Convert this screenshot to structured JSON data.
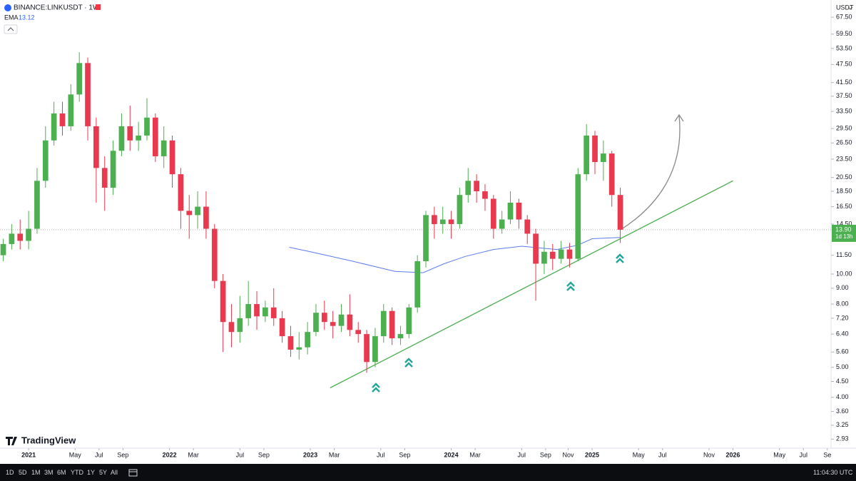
{
  "chart_data": {
    "type": "candlestick",
    "title": "BINANCE:LINKUSDT · 1W",
    "currency": "USDT",
    "log_scale": true,
    "up_color": "#4caf50",
    "down_color": "#e8394f",
    "x": [
      2020.82,
      2020.88,
      2020.94,
      2021.0,
      2021.06,
      2021.12,
      2021.18,
      2021.24,
      2021.3,
      2021.36,
      2021.42,
      2021.48,
      2021.54,
      2021.6,
      2021.66,
      2021.72,
      2021.78,
      2021.84,
      2021.9,
      2021.96,
      2022.02,
      2022.08,
      2022.14,
      2022.2,
      2022.26,
      2022.32,
      2022.38,
      2022.44,
      2022.5,
      2022.56,
      2022.62,
      2022.68,
      2022.74,
      2022.8,
      2022.86,
      2022.92,
      2022.98,
      2023.04,
      2023.1,
      2023.16,
      2023.22,
      2023.28,
      2023.34,
      2023.4,
      2023.46,
      2023.52,
      2023.58,
      2023.64,
      2023.7,
      2023.76,
      2023.82,
      2023.88,
      2023.94,
      2024.0,
      2024.06,
      2024.12,
      2024.18,
      2024.24,
      2024.3,
      2024.36,
      2024.42,
      2024.48,
      2024.54,
      2024.6,
      2024.66,
      2024.72,
      2024.78,
      2024.84,
      2024.9,
      2024.96,
      2025.02,
      2025.08,
      2025.14,
      2025.2
    ],
    "open": [
      11.5,
      12.5,
      13.5,
      12.8,
      14,
      20,
      27,
      33,
      30,
      38,
      48,
      30,
      22,
      19,
      25,
      30,
      27,
      28,
      32,
      24,
      27,
      21,
      16,
      15.5,
      16.5,
      14,
      9.5,
      7,
      6.5,
      7.2,
      8,
      7.3,
      7.8,
      7.2,
      6.3,
      5.7,
      5.8,
      6.5,
      7.5,
      7,
      6.8,
      7.4,
      6.6,
      6.4,
      5.2,
      6.3,
      7.6,
      6.2,
      6.4,
      7.8,
      11,
      15.5,
      14.5,
      15,
      14.5,
      18,
      20,
      18.5,
      17.5,
      14,
      15,
      17,
      15,
      13.5,
      10.8,
      11.8,
      11.2,
      12,
      11.2,
      21,
      28,
      23,
      24.5,
      18
    ],
    "high": [
      13,
      14.5,
      15,
      16,
      22,
      30,
      36,
      36,
      41,
      52,
      50,
      32,
      24,
      27,
      33,
      35,
      31,
      37,
      33,
      30,
      28,
      22,
      18,
      18.5,
      18.5,
      14.5,
      10,
      8,
      8.5,
      9.5,
      8.8,
      8.2,
      9,
      7.6,
      6.8,
      6.5,
      7,
      8,
      8.2,
      7.6,
      8,
      8.6,
      7,
      6.6,
      6.7,
      8,
      7.8,
      6.8,
      8,
      11.5,
      16,
      16.5,
      16.5,
      16,
      19,
      22,
      21,
      19.5,
      18,
      16,
      18.5,
      17.5,
      15.5,
      14,
      12.8,
      12.5,
      12.8,
      12.6,
      22,
      30.5,
      29,
      27,
      25,
      19
    ],
    "low": [
      11,
      12,
      12,
      12,
      13.5,
      19,
      26,
      28,
      29,
      36,
      27,
      17,
      16,
      18,
      24,
      25,
      25,
      27,
      23,
      22,
      19,
      14,
      13,
      14,
      13,
      9,
      5.6,
      5.8,
      6,
      6.8,
      6.6,
      7,
      6.8,
      6,
      5.4,
      5.3,
      5.5,
      6.3,
      6.6,
      6.2,
      6.5,
      6.3,
      6,
      4.8,
      5,
      6,
      5.9,
      5.9,
      6.2,
      7.5,
      10.5,
      13,
      13.5,
      13,
      14,
      17,
      17,
      16,
      13,
      13.5,
      14.5,
      14,
      12.5,
      8.2,
      10,
      10.3,
      10.8,
      10.5,
      11,
      20,
      21,
      20,
      16.5,
      12.6
    ],
    "close": [
      12.5,
      13.5,
      12.8,
      14,
      20,
      27,
      33,
      30,
      38,
      48,
      30,
      22,
      19,
      25,
      30,
      27,
      28,
      32,
      24,
      27,
      21,
      16,
      15.5,
      16.5,
      14,
      9.5,
      7,
      6.5,
      7.2,
      8,
      7.3,
      7.8,
      7.2,
      6.3,
      5.7,
      5.8,
      6.5,
      7.5,
      7,
      6.8,
      7.4,
      6.6,
      6.4,
      5.2,
      6.3,
      7.6,
      6.2,
      6.4,
      7.8,
      11,
      15.5,
      14.5,
      15,
      14.5,
      18,
      20,
      18.5,
      17.5,
      14,
      15,
      17,
      15,
      13.5,
      10.8,
      11.8,
      11.2,
      12,
      11.2,
      21,
      28,
      23,
      24.5,
      18,
      13.9
    ],
    "indicator": {
      "name": "EMA",
      "value": 13.12,
      "color": "#5b7cf0",
      "x": [
        2022.85,
        2023.0,
        2023.3,
        2023.6,
        2023.8,
        2023.95,
        2024.1,
        2024.3,
        2024.5,
        2024.75,
        2024.9,
        2025.0,
        2025.2
      ],
      "values": [
        12.2,
        11.8,
        11.0,
        10.2,
        10.1,
        10.8,
        11.4,
        12.0,
        12.3,
        12.0,
        12.4,
        13.0,
        13.12
      ]
    },
    "trendline": {
      "color": "#4caf50",
      "x": [
        2023.14,
        2026.0
      ],
      "values": [
        4.29,
        20.0
      ]
    },
    "last_price": {
      "value": 13.9,
      "label": "13.90"
    },
    "countdown": "1d 13h",
    "xlim": [
      2020.797,
      2026.696
    ],
    "ylim": [
      2.74,
      76.7
    ],
    "xticks": [
      2021,
      {
        "value": 2021.33,
        "label": "May"
      },
      {
        "value": 2021.5,
        "label": "Jul"
      },
      {
        "value": 2021.67,
        "label": "Sep"
      },
      2022,
      {
        "value": 2022.17,
        "label": "Mar"
      },
      {
        "value": 2022.5,
        "label": "Jul"
      },
      {
        "value": 2022.67,
        "label": "Sep"
      },
      2023,
      {
        "value": 2023.17,
        "label": "Mar"
      },
      {
        "value": 2023.5,
        "label": "Jul"
      },
      {
        "value": 2023.67,
        "label": "Sep"
      },
      2024,
      {
        "value": 2024.17,
        "label": "Mar"
      },
      {
        "value": 2024.5,
        "label": "Jul"
      },
      {
        "value": 2024.67,
        "label": "Sep"
      },
      {
        "value": 2024.83,
        "label": "Nov"
      },
      2025,
      {
        "value": 2025.33,
        "label": "May"
      },
      {
        "value": 2025.5,
        "label": "Jul"
      },
      {
        "value": 2025.83,
        "label": "Nov"
      },
      2026,
      {
        "value": 2026.33,
        "label": "May"
      },
      {
        "value": 2026.5,
        "label": "Jul"
      },
      {
        "value": 2026.67,
        "label": "Se"
      }
    ],
    "yticks": [
      {
        "value": 67.5,
        "label": "67.50"
      },
      {
        "value": 59.5,
        "label": "59.50"
      },
      {
        "value": 53.5,
        "label": "53.50"
      },
      {
        "value": 47.5,
        "label": "47.50"
      },
      {
        "value": 41.5,
        "label": "41.50"
      },
      {
        "value": 37.5,
        "label": "37.50"
      },
      {
        "value": 33.5,
        "label": "33.50"
      },
      {
        "value": 29.5,
        "label": "29.50"
      },
      {
        "value": 26.5,
        "label": "26.50"
      },
      {
        "value": 23.5,
        "label": "23.50"
      },
      {
        "value": 20.5,
        "label": "20.50"
      },
      {
        "value": 18.5,
        "label": "18.50"
      },
      {
        "value": 16.5,
        "label": "16.50"
      },
      {
        "value": 14.5,
        "label": "14.50"
      },
      {
        "value": 11.5,
        "label": "11.50"
      },
      {
        "value": 10,
        "label": "10.00"
      },
      {
        "value": 9,
        "label": "9.00"
      },
      {
        "value": 8,
        "label": "8.00"
      },
      {
        "value": 7.2,
        "label": "7.20"
      },
      {
        "value": 6.4,
        "label": "6.40"
      },
      {
        "value": 5.6,
        "label": "5.60"
      },
      {
        "value": 5,
        "label": "5.00"
      },
      {
        "value": 4.5,
        "label": "4.50"
      },
      {
        "value": 4,
        "label": "4.00"
      },
      {
        "value": 3.6,
        "label": "3.60"
      },
      {
        "value": 3.25,
        "label": "3.25"
      },
      {
        "value": 2.93,
        "label": "2.93"
      }
    ]
  },
  "toolbar": {
    "ranges": [
      "1D",
      "5D",
      "1M",
      "3M",
      "6M",
      "YTD",
      "1Y",
      "5Y",
      "All"
    ],
    "clock": "11:04:30 UTC"
  },
  "logo": "TradingView"
}
